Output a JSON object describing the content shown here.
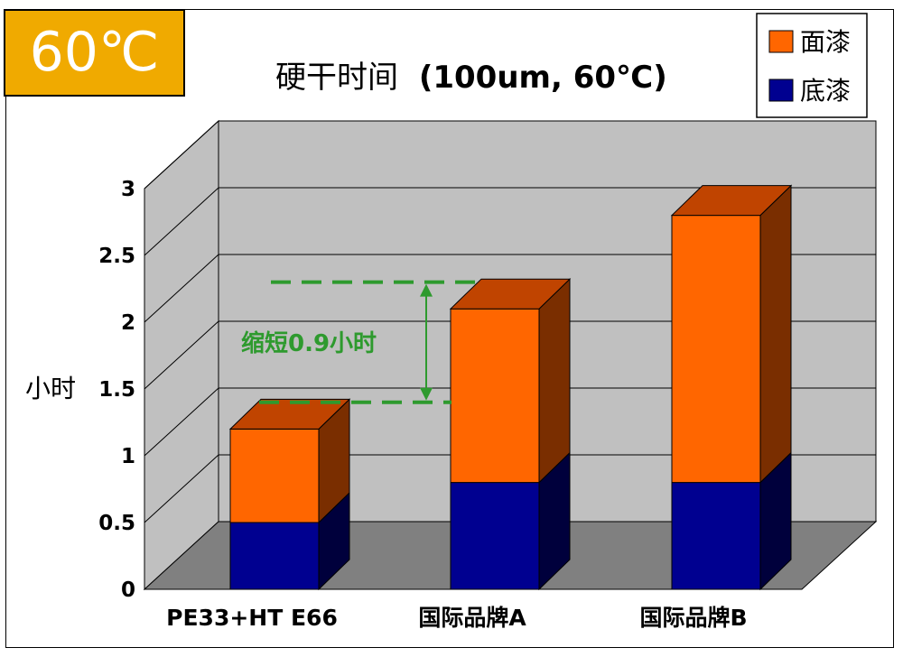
{
  "badge": {
    "label": "60℃",
    "color": "#f0aa00"
  },
  "chart_data": {
    "type": "bar",
    "stacked": true,
    "three_d": true,
    "title": "硬干时间 (100um, 60℃)",
    "title_main": "硬干时间",
    "title_detail": "(100um, 60℃)",
    "ylabel": "小时",
    "xlabel": "",
    "ylim": [
      0,
      3
    ],
    "yticks": [
      0,
      0.5,
      1,
      1.5,
      2,
      2.5,
      3
    ],
    "ytick_labels": [
      "0",
      "0.5",
      "1",
      "1.5",
      "2",
      "2.5",
      "3"
    ],
    "grid": true,
    "legend_position": "top-right",
    "categories": [
      "PE33+HT E66",
      "国际品牌A",
      "国际品牌B"
    ],
    "series": [
      {
        "name": "底漆",
        "values": [
          0.5,
          0.8,
          0.8
        ],
        "color": "#000090",
        "side_color": "#00003c",
        "top_color": "#000060"
      },
      {
        "name": "面漆",
        "values": [
          0.7,
          1.3,
          2.0
        ],
        "color": "#ff6600",
        "side_color": "#7a2e00",
        "top_color": "#c04400"
      }
    ],
    "legend_order": [
      "面漆",
      "底漆"
    ],
    "annotation": {
      "text": "缩短0.9小时",
      "from_value": 1.4,
      "to_value": 2.3,
      "color": "#2e9a2e"
    }
  }
}
